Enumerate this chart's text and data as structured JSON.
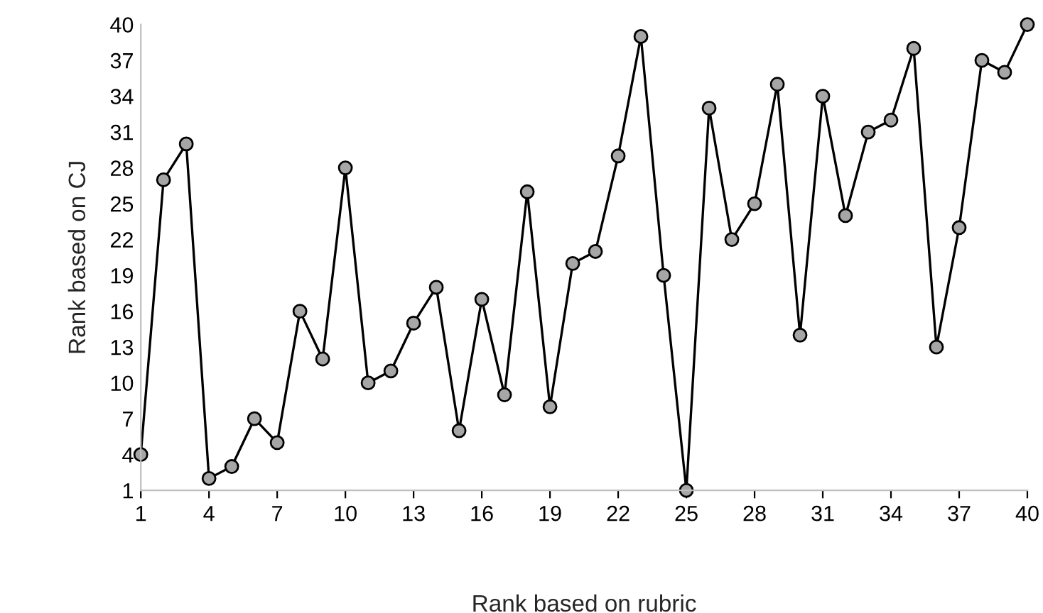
{
  "chart_data": {
    "type": "line",
    "xlabel": "Rank based on rubric",
    "ylabel": "Rank based on CJ",
    "x": [
      1,
      2,
      3,
      4,
      5,
      6,
      7,
      8,
      9,
      10,
      11,
      12,
      13,
      14,
      15,
      16,
      17,
      18,
      19,
      20,
      21,
      22,
      23,
      24,
      25,
      26,
      27,
      28,
      29,
      30,
      31,
      32,
      33,
      34,
      35,
      36,
      37,
      38,
      39,
      40
    ],
    "series": [
      {
        "color": "#000000",
        "values": [
          4,
          27,
          30,
          2,
          3,
          7,
          5,
          16,
          12,
          28,
          10,
          11,
          15,
          18,
          6,
          17,
          9,
          26,
          8,
          20,
          21,
          29,
          39,
          19,
          1,
          33,
          22,
          25,
          35,
          14,
          34,
          24,
          31,
          32,
          38,
          13,
          23,
          37,
          36,
          40
        ]
      }
    ],
    "xlim": [
      1,
      40
    ],
    "xticks": [
      1,
      4,
      7,
      10,
      13,
      16,
      19,
      22,
      25,
      28,
      31,
      34,
      37,
      40
    ],
    "ylim": [
      1,
      40
    ],
    "yticks": [
      1,
      4,
      7,
      10,
      13,
      16,
      19,
      22,
      25,
      28,
      31,
      34,
      37,
      40
    ],
    "marker": "circle",
    "line_style": "solid",
    "grid": false,
    "legend": false
  }
}
